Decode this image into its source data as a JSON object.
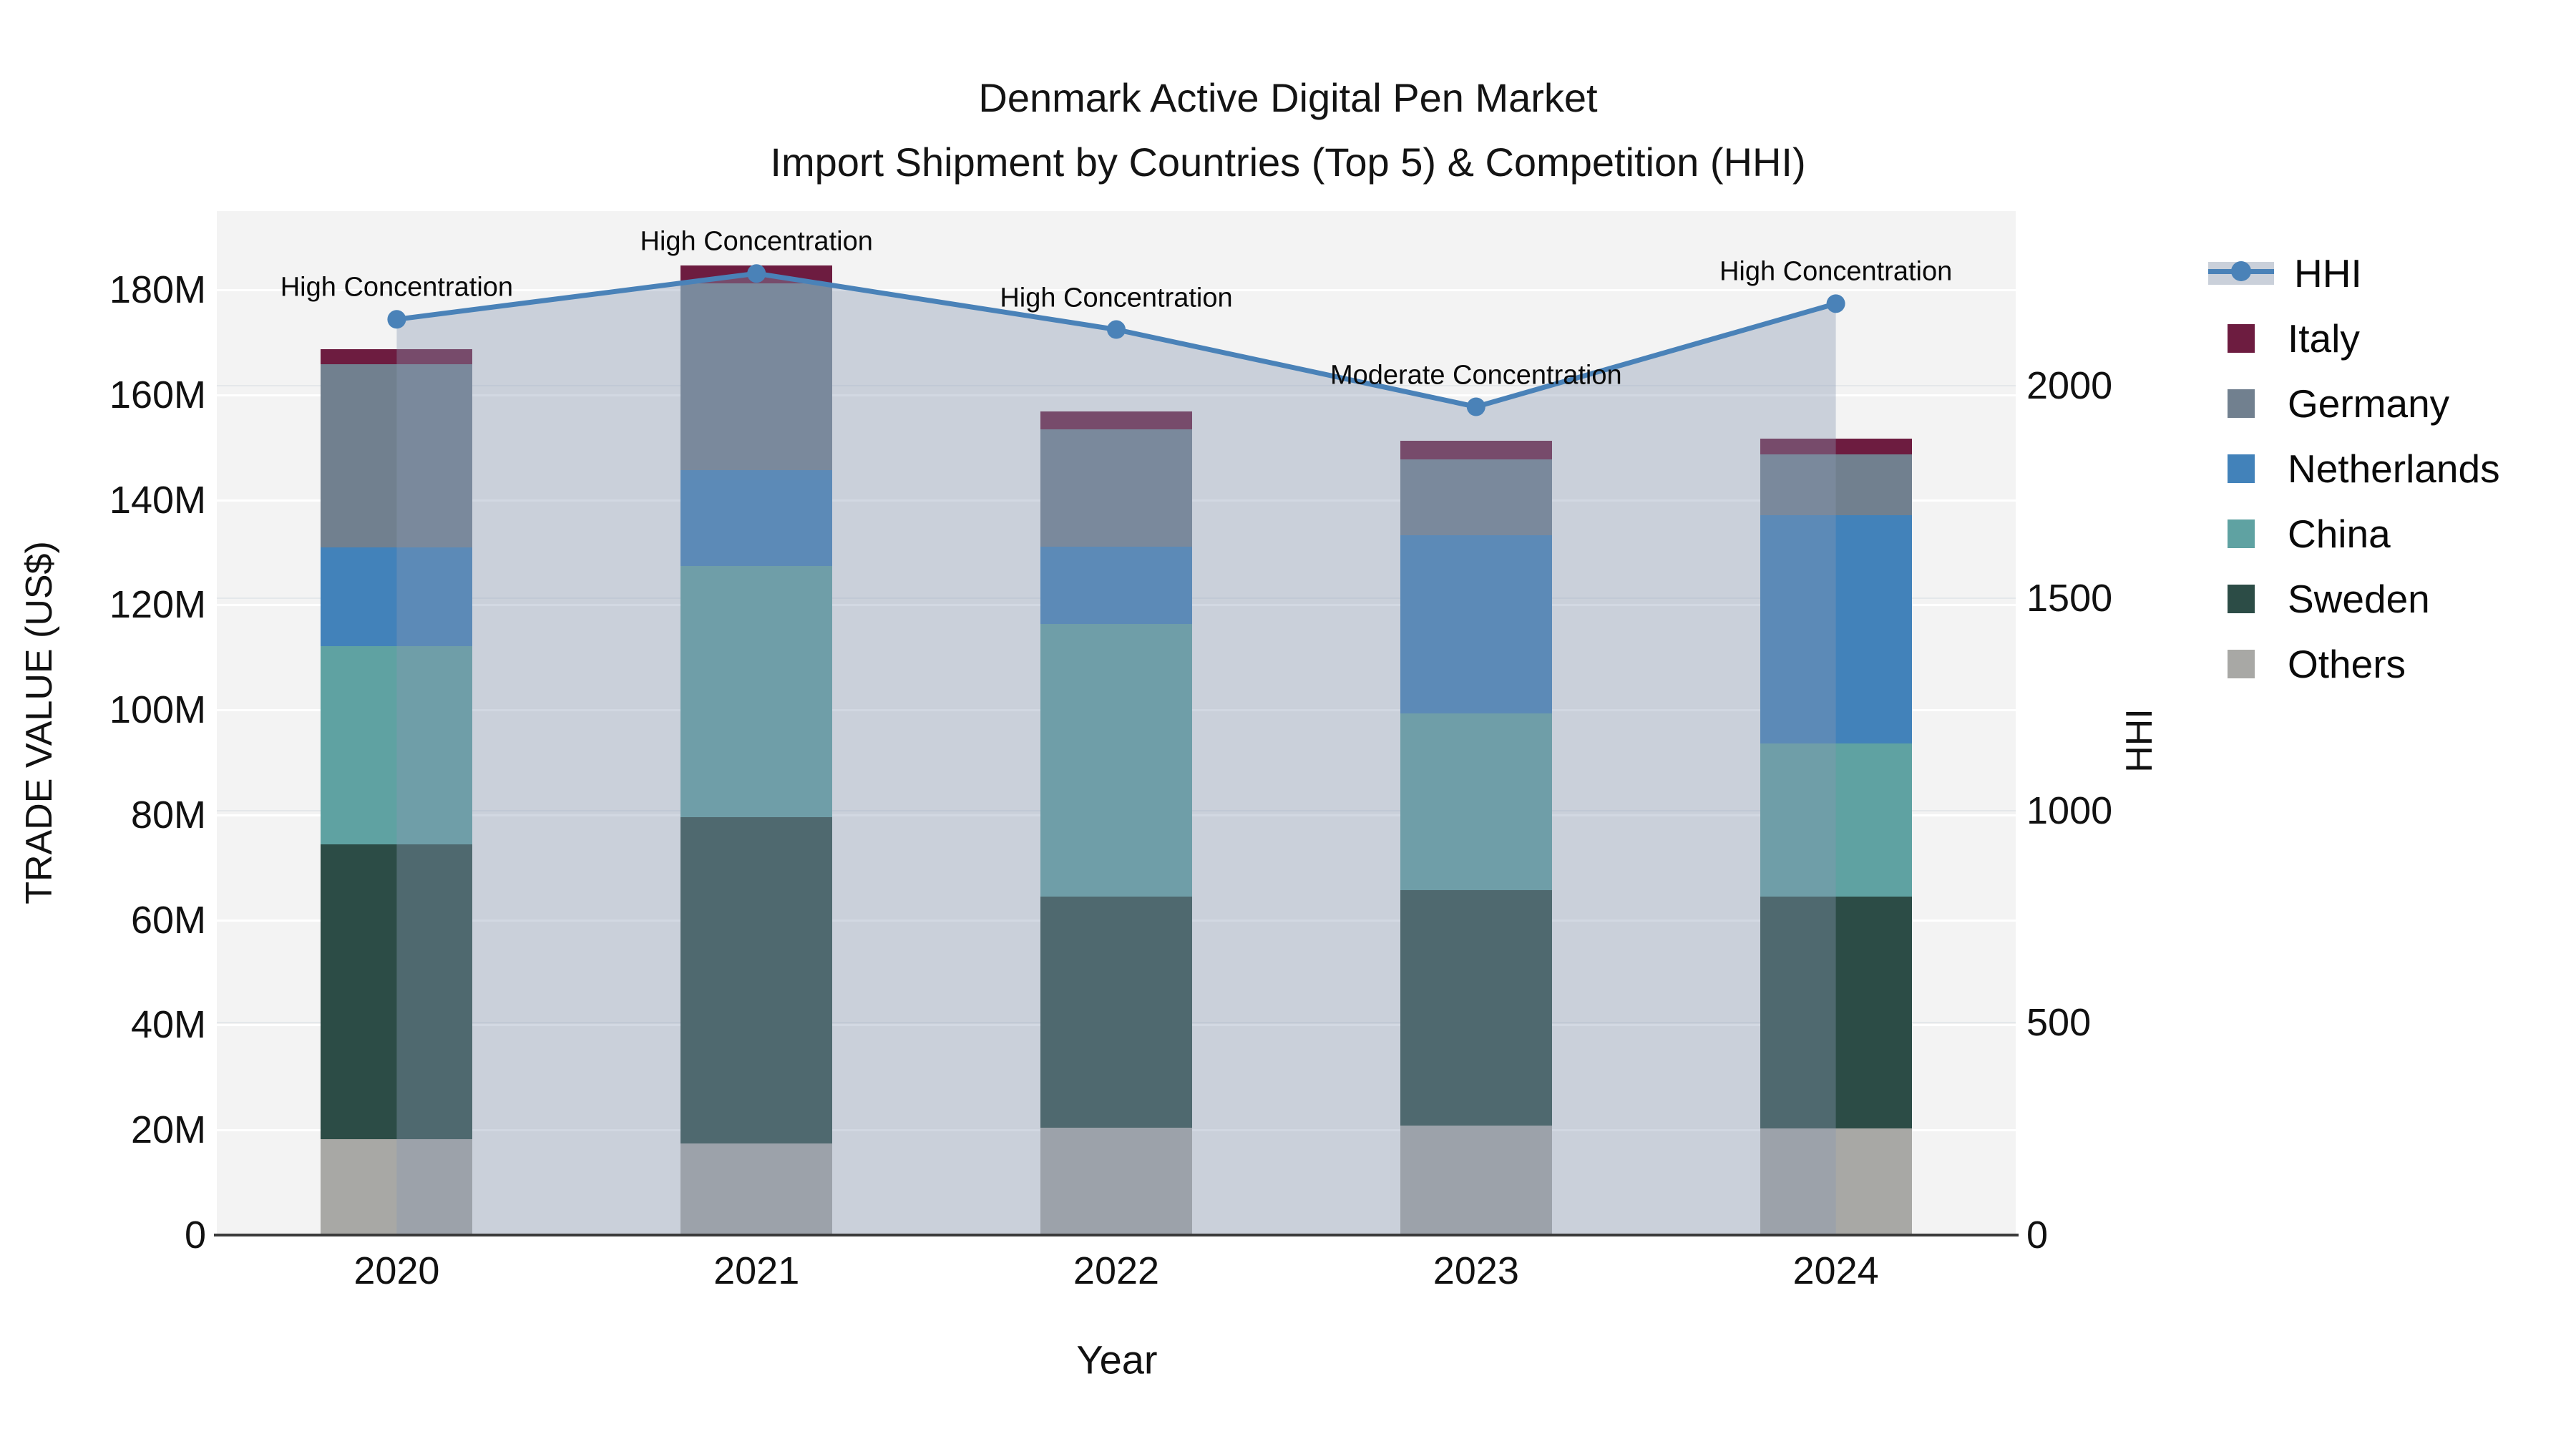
{
  "chart_data": {
    "type": "combo-stacked-bar-line",
    "title_line1": "Denmark Active Digital Pen Market",
    "title_line2": "Import Shipment by Countries (Top 5) & Competition (HHI)",
    "xlabel": "Year",
    "ylabel_left": "TRADE VALUE (US$)",
    "ylabel_right": "HHI",
    "categories": [
      "2020",
      "2021",
      "2022",
      "2023",
      "2024"
    ],
    "y_ticks_left": [
      {
        "label": "0",
        "value": 0
      },
      {
        "label": "20M",
        "value": 20
      },
      {
        "label": "40M",
        "value": 40
      },
      {
        "label": "60M",
        "value": 60
      },
      {
        "label": "80M",
        "value": 80
      },
      {
        "label": "100M",
        "value": 100
      },
      {
        "label": "120M",
        "value": 120
      },
      {
        "label": "140M",
        "value": 140
      },
      {
        "label": "160M",
        "value": 160
      },
      {
        "label": "180M",
        "value": 180
      }
    ],
    "y_ticks_right": [
      {
        "label": "0",
        "value": 0
      },
      {
        "label": "500",
        "value": 500
      },
      {
        "label": "1000",
        "value": 1000
      },
      {
        "label": "1500",
        "value": 1500
      },
      {
        "label": "2000",
        "value": 2000
      }
    ],
    "ylim_left_millions": [
      0,
      195
    ],
    "ylim_right": [
      0,
      2412
    ],
    "grid": true,
    "plot_bg": "#f3f3f3",
    "series": [
      {
        "name": "Italy",
        "color": "#6d1c40",
        "values_millions": [
          2.9,
          3.4,
          3.3,
          3.5,
          2.9
        ]
      },
      {
        "name": "Germany",
        "color": "#71808f",
        "values_millions": [
          34.9,
          35.5,
          22.4,
          14.4,
          11.6
        ]
      },
      {
        "name": "Netherlands",
        "color": "#4282ba",
        "values_millions": [
          18.8,
          18.3,
          14.7,
          34.0,
          43.5
        ]
      },
      {
        "name": "China",
        "color": "#5fa2a2",
        "values_millions": [
          37.7,
          47.8,
          51.9,
          33.6,
          29.2
        ]
      },
      {
        "name": "Sweden",
        "color": "#2c4c46",
        "values_millions": [
          56.2,
          62.2,
          44.0,
          44.8,
          44.1
        ]
      },
      {
        "name": "Others",
        "color": "#a8a8a5",
        "values_millions": [
          18.2,
          17.4,
          20.5,
          20.9,
          20.3
        ]
      }
    ],
    "stack_order_bottom_to_top": [
      "Others",
      "Sweden",
      "China",
      "Netherlands",
      "Germany",
      "Italy"
    ],
    "totals_millions": [
      168.7,
      184.6,
      156.8,
      151.2,
      151.6
    ],
    "hhi": {
      "name": "HHI",
      "line_color": "#4a82b8",
      "area_color": "rgba(136,152,178,0.38)",
      "marker": "circle",
      "values": [
        2157,
        2265,
        2133,
        1951,
        2194
      ],
      "annotations": [
        "High Concentration",
        "High Concentration",
        "High Concentration",
        "Moderate Concentration",
        "High Concentration"
      ]
    },
    "legend": {
      "position": "right",
      "entries": [
        "HHI",
        "Italy",
        "Germany",
        "Netherlands",
        "China",
        "Sweden",
        "Others"
      ]
    }
  }
}
